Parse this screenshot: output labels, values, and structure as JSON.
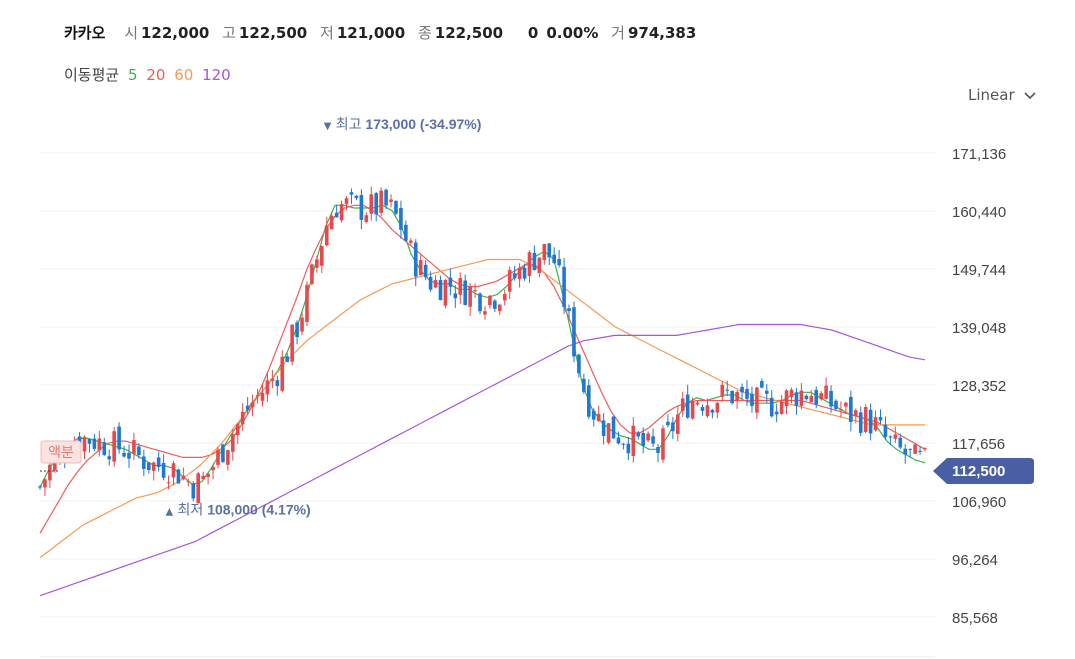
{
  "header": {
    "name": "카카오",
    "open_label": "시",
    "open": "122,000",
    "high_label": "고",
    "high": "122,500",
    "low_label": "저",
    "low": "121,000",
    "close_label": "종",
    "close": "122,500",
    "change": "0",
    "change_pct": "0.00%",
    "volume_label": "거",
    "volume": "974,383"
  },
  "ma_legend": {
    "title": "이동평균",
    "periods": [
      "5",
      "20",
      "60",
      "120"
    ],
    "colors": [
      "#3cb34a",
      "#ef5b5b",
      "#f59a52",
      "#a855e0"
    ]
  },
  "scale_select": {
    "value": "Linear",
    "icon": "chevron-down-icon"
  },
  "dividend_badge": "액분",
  "chart_data": {
    "type": "candlestick",
    "y_ticks": [
      "171,136",
      "160,440",
      "149,744",
      "139,048",
      "128,352",
      "117,656",
      "106,960",
      "96,264",
      "85,568"
    ],
    "ylim": [
      85568,
      171136
    ],
    "current_price": "112,500",
    "high_marker": {
      "label": "최고",
      "value": "173,000 (-34.97%)"
    },
    "low_marker": {
      "label": "최저",
      "value": "108,000 (4.17%)"
    },
    "colors": {
      "up": "#e5484d",
      "down": "#1f78d1",
      "current": "#4a5fa3",
      "marker": "#5b6fa8"
    },
    "series": [
      {
        "name": "5",
        "values": [
          109500,
          113000,
          115500,
          117500,
          118500,
          118500,
          118000,
          117500,
          117000,
          116500,
          115500,
          114500,
          113500,
          113500,
          113000,
          111500,
          110000,
          110500,
          113000,
          116000,
          119000,
          121500,
          124500,
          126500,
          128500,
          131000,
          134500,
          139000,
          144500,
          151000,
          157500,
          161500,
          161500,
          161000,
          161000,
          161000,
          161500,
          160500,
          157500,
          152500,
          149500,
          147500,
          147000,
          147000,
          146000,
          146000,
          145000,
          144500,
          145000,
          146500,
          148500,
          150500,
          152000,
          153000,
          151500,
          144500,
          136500,
          128500,
          124000,
          121500,
          120000,
          119000,
          118500,
          117500,
          116500,
          116500,
          119000,
          122500,
          125000,
          126000,
          125500,
          126000,
          126500,
          126500,
          125500,
          125000,
          125000,
          125000,
          125500,
          126500,
          127000,
          127000,
          126000,
          125000,
          124000,
          123000,
          122500,
          122000,
          120500,
          118000,
          116500,
          115500,
          114500,
          114000
        ]
      },
      {
        "name": "20",
        "values": [
          101000,
          104000,
          107000,
          110000,
          112500,
          114500,
          116000,
          117500,
          118000,
          118000,
          117500,
          117000,
          116500,
          116000,
          115500,
          115000,
          115000,
          115000,
          115500,
          116500,
          118000,
          120500,
          123500,
          127000,
          131000,
          135500,
          140000,
          144500,
          149500,
          153500,
          157000,
          159500,
          161000,
          161500,
          161500,
          160500,
          159000,
          157000,
          155500,
          154000,
          152500,
          151000,
          149500,
          148000,
          147000,
          146500,
          146500,
          147000,
          147500,
          148500,
          149500,
          150500,
          150500,
          149000,
          146500,
          143000,
          139000,
          135000,
          131000,
          127000,
          123500,
          121000,
          119500,
          119500,
          120500,
          122000,
          123500,
          124500,
          125000,
          125500,
          125500,
          125500,
          125500,
          125500,
          125500,
          125500,
          125500,
          125500,
          125500,
          125500,
          125500,
          125000,
          124500,
          124000,
          123500,
          123000,
          122500,
          122000,
          121500,
          120500,
          119500,
          118500,
          117500,
          116500
        ]
      },
      {
        "name": "60",
        "values": [
          96500,
          98000,
          99500,
          101000,
          102500,
          103500,
          104500,
          105500,
          106500,
          107500,
          108000,
          108500,
          109500,
          110500,
          112000,
          113500,
          115500,
          117500,
          120000,
          122500,
          125000,
          127500,
          130000,
          132500,
          134500,
          136500,
          138000,
          139500,
          141000,
          142500,
          144000,
          145000,
          146000,
          147000,
          147500,
          148000,
          148500,
          149000,
          149500,
          150000,
          150500,
          151000,
          151500,
          151500,
          151500,
          151500,
          150500,
          149500,
          148000,
          146500,
          145000,
          143500,
          142000,
          140500,
          139000,
          138000,
          137000,
          136000,
          135000,
          134000,
          133000,
          132000,
          131000,
          130000,
          129000,
          128000,
          127000,
          126500,
          126000,
          125500,
          125000,
          124500,
          124000,
          123500,
          123000,
          122500,
          122000,
          121500,
          121000,
          121000,
          121000,
          121000,
          121000,
          121000
        ]
      },
      {
        "name": "120",
        "values": [
          89500,
          90500,
          91500,
          92500,
          93500,
          94500,
          95500,
          96500,
          97500,
          98500,
          99500,
          101000,
          102500,
          104000,
          105500,
          107000,
          108500,
          110000,
          111500,
          113000,
          114500,
          116000,
          117500,
          119000,
          120500,
          122000,
          123500,
          125000,
          126500,
          128000,
          129500,
          131000,
          132500,
          134000,
          135500,
          136500,
          137000,
          137500,
          137500,
          137500,
          137500,
          137500,
          138000,
          138500,
          139000,
          139500,
          139500,
          139500,
          139500,
          139500,
          139000,
          138500,
          137500,
          136500,
          135500,
          134500,
          133500,
          133000
        ]
      }
    ]
  }
}
